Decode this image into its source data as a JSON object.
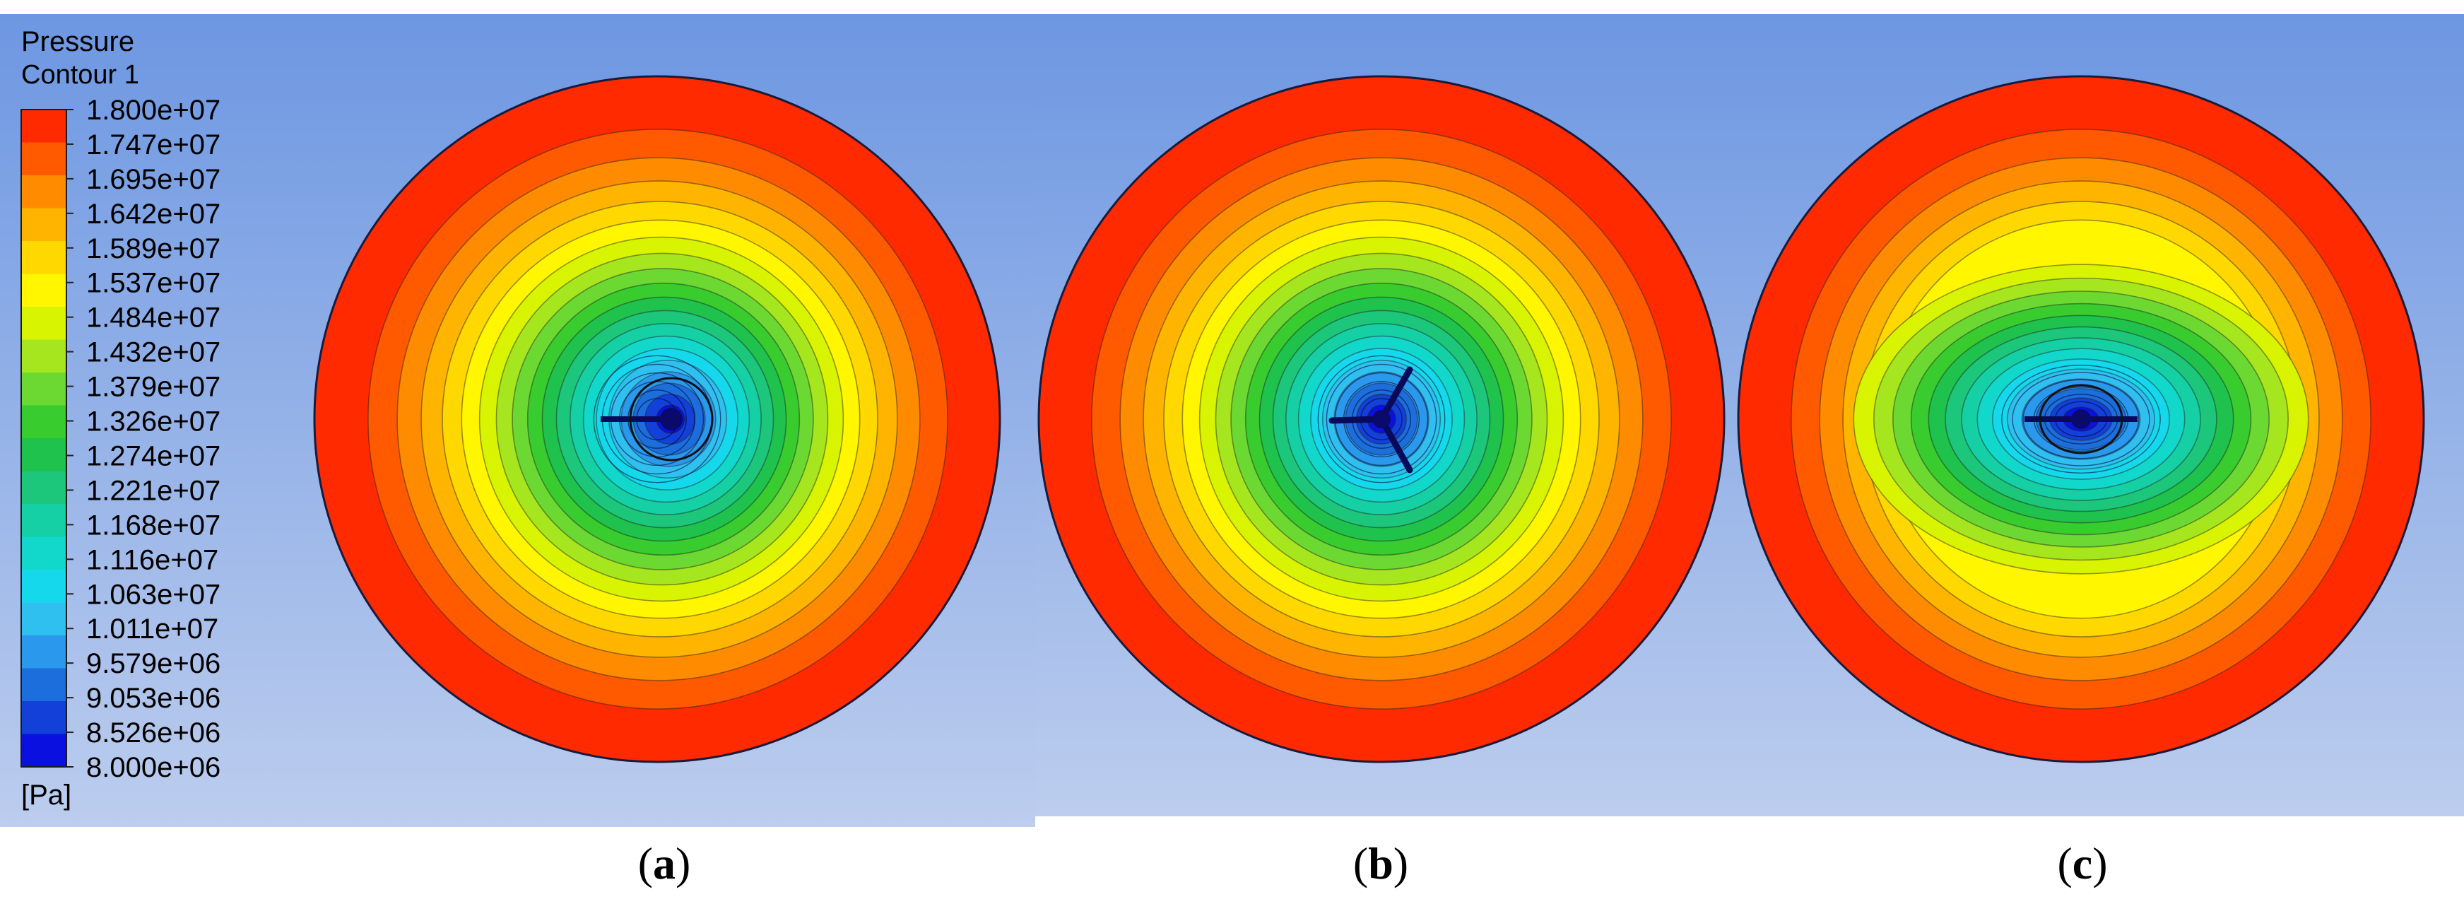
{
  "legend": {
    "title": "Pressure",
    "subtitle": "Contour 1",
    "unit": "[Pa]",
    "levels": [
      "1.800e+07",
      "1.747e+07",
      "1.695e+07",
      "1.642e+07",
      "1.589e+07",
      "1.537e+07",
      "1.484e+07",
      "1.432e+07",
      "1.379e+07",
      "1.326e+07",
      "1.274e+07",
      "1.221e+07",
      "1.168e+07",
      "1.116e+07",
      "1.063e+07",
      "1.011e+07",
      "9.579e+06",
      "9.053e+06",
      "8.526e+06",
      "8.000e+06"
    ],
    "colors": [
      "#ff2a00",
      "#ff5a00",
      "#ff8c00",
      "#ffb400",
      "#ffd800",
      "#fff600",
      "#d8f400",
      "#a6e61e",
      "#6cd832",
      "#38cc2e",
      "#1ec24c",
      "#1cc67a",
      "#14d0a4",
      "#12d8cc",
      "#16d8ec",
      "#30c0f0",
      "#2a98ec",
      "#1c6edc",
      "#1240d8",
      "#0a10e0"
    ]
  },
  "panels": [
    {
      "label_open": "(",
      "label_letter": "a",
      "label_close": ")",
      "variant": "single"
    },
    {
      "label_open": "(",
      "label_letter": "b",
      "label_close": ")",
      "variant": "tri"
    },
    {
      "label_open": "(",
      "label_letter": "c",
      "label_close": ")",
      "variant": "dual"
    }
  ]
}
